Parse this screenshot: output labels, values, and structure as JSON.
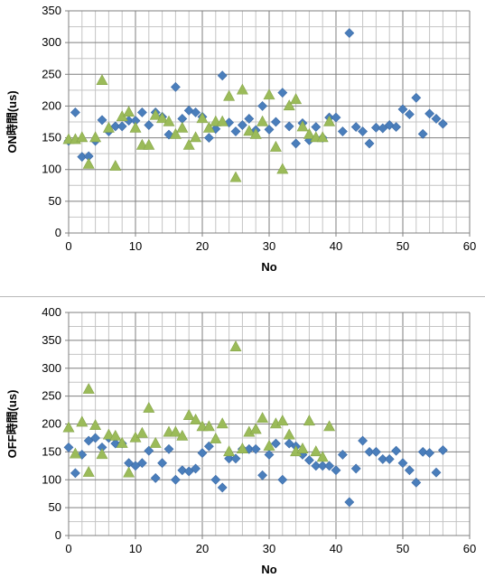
{
  "colors": {
    "diamond_series": "#4a7ebb",
    "triangle_series": "#9bbb59",
    "grid": "#8c8c8c",
    "axis": "#808080"
  },
  "chart_data": [
    {
      "type": "scatter",
      "title": "",
      "xlabel": "No",
      "ylabel": "ON時間(us)",
      "xlim": [
        0,
        60
      ],
      "ylim": [
        0,
        350
      ],
      "x_ticks": [
        "0",
        "10",
        "20",
        "30",
        "40",
        "50",
        "60"
      ],
      "y_ticks": [
        "0",
        "50",
        "100",
        "150",
        "200",
        "250",
        "300",
        "350"
      ],
      "grid": true,
      "legend": "none",
      "series": [
        {
          "marker": "diamond",
          "color": "#4a7ebb",
          "points": [
            [
              0,
              145
            ],
            [
              1,
              190
            ],
            [
              2,
              120
            ],
            [
              3,
              121
            ],
            [
              4,
              145
            ],
            [
              5,
              178
            ],
            [
              6,
              160
            ],
            [
              7,
              168
            ],
            [
              8,
              168
            ],
            [
              9,
              177
            ],
            [
              10,
              177
            ],
            [
              11,
              190
            ],
            [
              12,
              170
            ],
            [
              13,
              190
            ],
            [
              14,
              183
            ],
            [
              15,
              155
            ],
            [
              16,
              230
            ],
            [
              17,
              180
            ],
            [
              18,
              193
            ],
            [
              19,
              190
            ],
            [
              20,
              183
            ],
            [
              21,
              150
            ],
            [
              22,
              164
            ],
            [
              23,
              248
            ],
            [
              24,
              174
            ],
            [
              25,
              160
            ],
            [
              26,
              170
            ],
            [
              27,
              180
            ],
            [
              28,
              162
            ],
            [
              29,
              200
            ],
            [
              30,
              163
            ],
            [
              31,
              175
            ],
            [
              32,
              221
            ],
            [
              33,
              168
            ],
            [
              34,
              141
            ],
            [
              35,
              173
            ],
            [
              36,
              146
            ],
            [
              37,
              167
            ],
            [
              38,
              150
            ],
            [
              39,
              182
            ],
            [
              40,
              182
            ],
            [
              41,
              160
            ],
            [
              42,
              315
            ],
            [
              43,
              167
            ],
            [
              44,
              160
            ],
            [
              45,
              141
            ],
            [
              46,
              166
            ],
            [
              47,
              165
            ],
            [
              48,
              170
            ],
            [
              49,
              167
            ],
            [
              50,
              195
            ],
            [
              51,
              187
            ],
            [
              52,
              213
            ],
            [
              53,
              156
            ],
            [
              54,
              188
            ],
            [
              55,
              180
            ],
            [
              56,
              172
            ]
          ]
        },
        {
          "marker": "triangle",
          "color": "#9bbb59",
          "points": [
            [
              0,
              147
            ],
            [
              1,
              147
            ],
            [
              2,
              150
            ],
            [
              3,
              108
            ],
            [
              4,
              150
            ],
            [
              5,
              240
            ],
            [
              6,
              165
            ],
            [
              7,
              105
            ],
            [
              8,
              183
            ],
            [
              9,
              190
            ],
            [
              10,
              165
            ],
            [
              11,
              138
            ],
            [
              12,
              138
            ],
            [
              13,
              185
            ],
            [
              14,
              180
            ],
            [
              15,
              175
            ],
            [
              16,
              155
            ],
            [
              17,
              165
            ],
            [
              18,
              138
            ],
            [
              19,
              150
            ],
            [
              20,
              180
            ],
            [
              21,
              165
            ],
            [
              22,
              175
            ],
            [
              23,
              175
            ],
            [
              24,
              215
            ],
            [
              25,
              87
            ],
            [
              26,
              225
            ],
            [
              27,
              160
            ],
            [
              28,
              155
            ],
            [
              29,
              175
            ],
            [
              30,
              217
            ],
            [
              31,
              135
            ],
            [
              32,
              100
            ],
            [
              33,
              200
            ],
            [
              34,
              210
            ],
            [
              35,
              167
            ],
            [
              36,
              155
            ],
            [
              37,
              150
            ],
            [
              38,
              150
            ],
            [
              39,
              175
            ]
          ]
        }
      ]
    },
    {
      "type": "scatter",
      "title": "",
      "xlabel": "No",
      "ylabel": "OFF時間(us)",
      "xlim": [
        0,
        60
      ],
      "ylim": [
        0,
        400
      ],
      "x_ticks": [
        "0",
        "10",
        "20",
        "30",
        "40",
        "50",
        "60"
      ],
      "y_ticks": [
        "0",
        "50",
        "100",
        "150",
        "200",
        "250",
        "300",
        "350",
        "400"
      ],
      "grid": true,
      "legend": "none",
      "series": [
        {
          "marker": "diamond",
          "color": "#4a7ebb",
          "points": [
            [
              0,
              158
            ],
            [
              1,
              112
            ],
            [
              2,
              145
            ],
            [
              3,
              170
            ],
            [
              4,
              175
            ],
            [
              5,
              158
            ],
            [
              6,
              175
            ],
            [
              7,
              165
            ],
            [
              8,
              165
            ],
            [
              9,
              130
            ],
            [
              10,
              125
            ],
            [
              11,
              130
            ],
            [
              12,
              152
            ],
            [
              13,
              103
            ],
            [
              14,
              130
            ],
            [
              15,
              155
            ],
            [
              16,
              100
            ],
            [
              17,
              117
            ],
            [
              18,
              115
            ],
            [
              19,
              120
            ],
            [
              20,
              148
            ],
            [
              21,
              160
            ],
            [
              22,
              100
            ],
            [
              23,
              86
            ],
            [
              24,
              138
            ],
            [
              25,
              138
            ],
            [
              26,
              155
            ],
            [
              27,
              155
            ],
            [
              28,
              155
            ],
            [
              29,
              108
            ],
            [
              30,
              145
            ],
            [
              31,
              165
            ],
            [
              32,
              100
            ],
            [
              33,
              165
            ],
            [
              34,
              160
            ],
            [
              35,
              145
            ],
            [
              36,
              135
            ],
            [
              37,
              125
            ],
            [
              38,
              125
            ],
            [
              39,
              125
            ],
            [
              40,
              117
            ],
            [
              41,
              145
            ],
            [
              42,
              60
            ],
            [
              43,
              120
            ],
            [
              44,
              170
            ],
            [
              45,
              150
            ],
            [
              46,
              150
            ],
            [
              47,
              137
            ],
            [
              48,
              137
            ],
            [
              49,
              152
            ],
            [
              50,
              130
            ],
            [
              51,
              117
            ],
            [
              52,
              95
            ],
            [
              53,
              150
            ],
            [
              54,
              148
            ],
            [
              55,
              113
            ],
            [
              56,
              153
            ]
          ]
        },
        {
          "marker": "triangle",
          "color": "#9bbb59",
          "points": [
            [
              0,
              193
            ],
            [
              1,
              146
            ],
            [
              2,
              203
            ],
            [
              3,
              262
            ],
            [
              3,
              113
            ],
            [
              4,
              197
            ],
            [
              5,
              145
            ],
            [
              6,
              180
            ],
            [
              7,
              178
            ],
            [
              8,
              165
            ],
            [
              9,
              112
            ],
            [
              10,
              175
            ],
            [
              11,
              183
            ],
            [
              12,
              228
            ],
            [
              13,
              165
            ],
            [
              15,
              185
            ],
            [
              16,
              185
            ],
            [
              17,
              178
            ],
            [
              18,
              215
            ],
            [
              19,
              207
            ],
            [
              20,
              195
            ],
            [
              21,
              195
            ],
            [
              22,
              173
            ],
            [
              23,
              200
            ],
            [
              24,
              150
            ],
            [
              25,
              338
            ],
            [
              26,
              155
            ],
            [
              27,
              185
            ],
            [
              28,
              190
            ],
            [
              29,
              210
            ],
            [
              30,
              160
            ],
            [
              31,
              200
            ],
            [
              32,
              205
            ],
            [
              33,
              180
            ],
            [
              34,
              150
            ],
            [
              35,
              155
            ],
            [
              36,
              205
            ],
            [
              37,
              150
            ],
            [
              38,
              140
            ],
            [
              39,
              195
            ]
          ]
        }
      ]
    }
  ]
}
